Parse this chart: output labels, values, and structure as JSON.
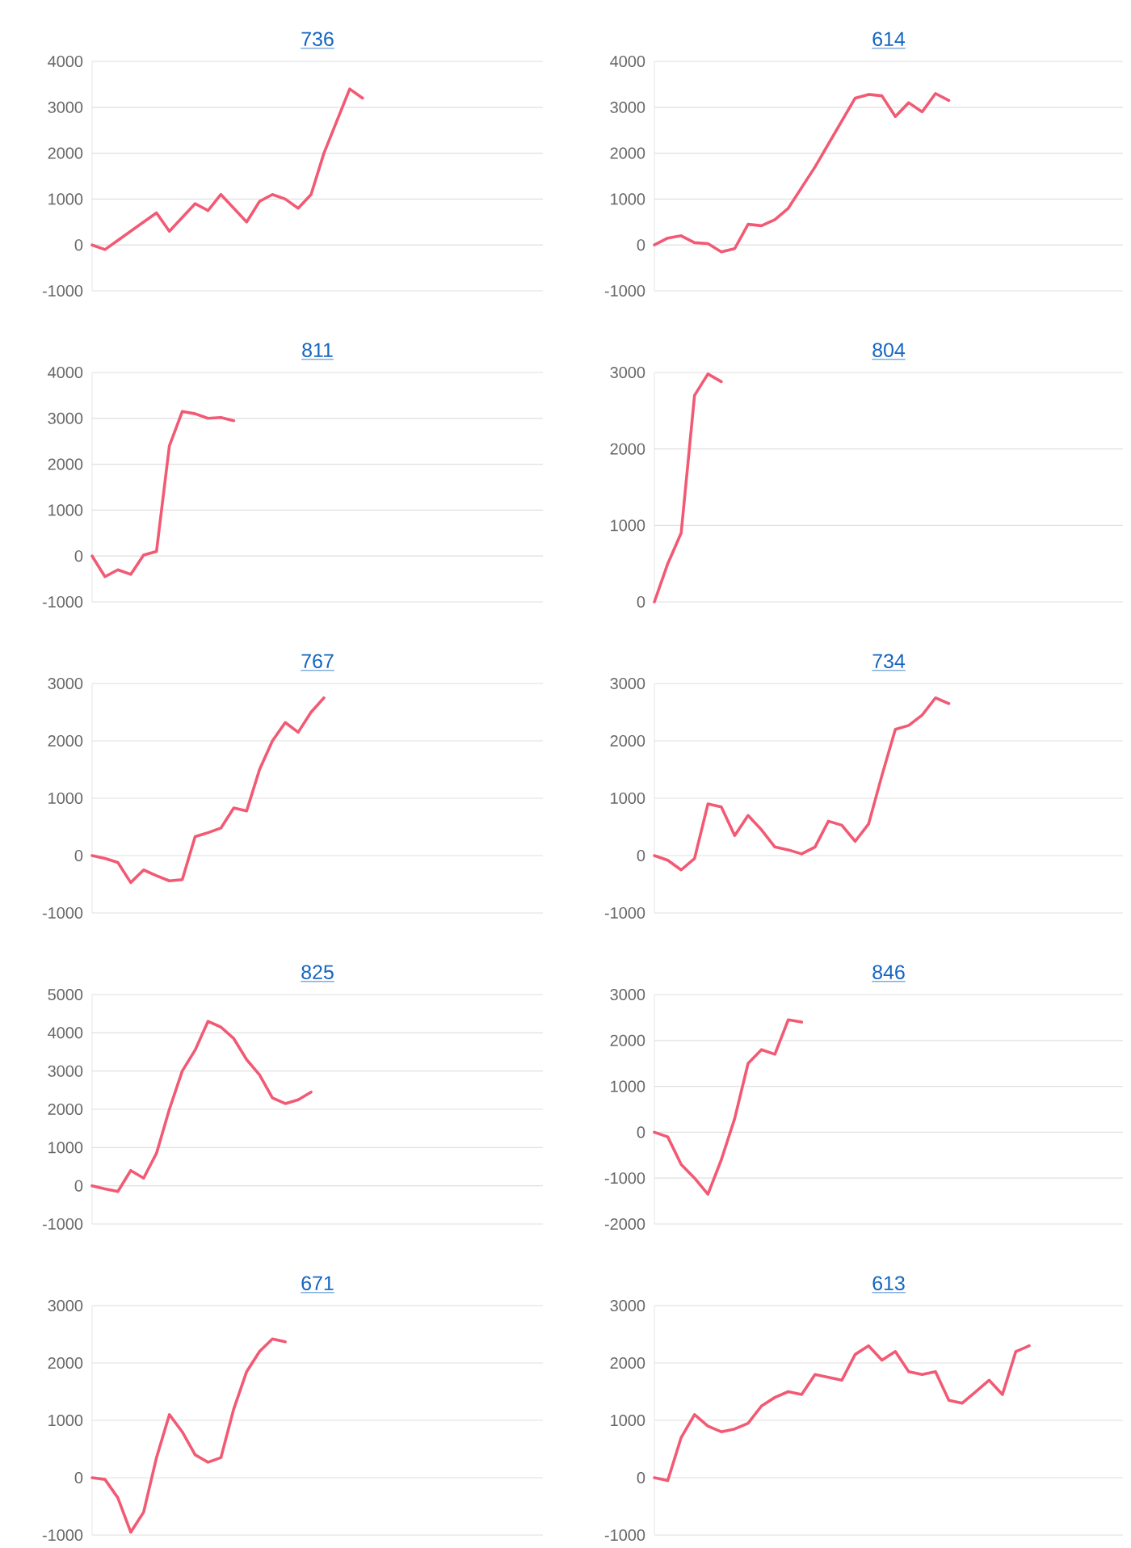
{
  "chart_data": [
    {
      "type": "line",
      "title": "736",
      "categories": [
        null,
        null,
        null,
        null,
        null,
        null,
        null,
        null,
        null,
        null,
        null,
        null,
        null,
        null,
        null,
        null,
        null,
        null,
        null,
        null,
        null,
        null,
        null,
        null,
        null,
        null,
        null,
        null,
        null,
        null,
        null,
        null,
        null,
        null,
        null,
        null
      ],
      "values": [
        0,
        -100,
        100,
        300,
        500,
        700,
        300,
        600,
        900,
        750,
        1100,
        800,
        500,
        950,
        1100,
        1000,
        800,
        1100,
        2000,
        2700,
        3400,
        3200,
        null,
        null,
        null,
        null,
        null,
        null,
        null,
        null,
        null,
        null,
        null,
        null,
        null,
        null
      ],
      "color": "#f25a74",
      "ylim": [
        -1000,
        4000
      ],
      "yticks": [
        -1000,
        0,
        1000,
        2000,
        3000,
        4000
      ],
      "grid": "y"
    },
    {
      "type": "line",
      "title": "614",
      "categories": [
        null,
        null,
        null,
        null,
        null,
        null,
        null,
        null,
        null,
        null,
        null,
        null,
        null,
        null,
        null,
        null,
        null,
        null,
        null,
        null,
        null,
        null,
        null,
        null,
        null,
        null,
        null,
        null,
        null,
        null,
        null,
        null,
        null,
        null,
        null,
        null
      ],
      "values": [
        0,
        150,
        200,
        50,
        30,
        -150,
        -80,
        450,
        420,
        550,
        800,
        1250,
        1700,
        2200,
        2700,
        3200,
        3280,
        3250,
        2800,
        3100,
        2900,
        3300,
        3150,
        null,
        null,
        null,
        null,
        null,
        null,
        null,
        null,
        null,
        null,
        null,
        null,
        null
      ],
      "color": "#f25a74",
      "ylim": [
        -1000,
        4000
      ],
      "yticks": [
        -1000,
        0,
        1000,
        2000,
        3000,
        4000
      ],
      "grid": "y"
    },
    {
      "type": "line",
      "title": "811",
      "categories": [
        null,
        null,
        null,
        null,
        null,
        null,
        null,
        null,
        null,
        null,
        null,
        null,
        null,
        null,
        null,
        null,
        null,
        null,
        null,
        null,
        null,
        null,
        null,
        null,
        null,
        null,
        null,
        null,
        null,
        null,
        null,
        null,
        null,
        null,
        null,
        null
      ],
      "values": [
        0,
        -450,
        -300,
        -400,
        20,
        100,
        2400,
        3150,
        3100,
        3000,
        3020,
        2950,
        null,
        null,
        null,
        null,
        null,
        null,
        null,
        null,
        null,
        null,
        null,
        null,
        null,
        null,
        null,
        null,
        null,
        null,
        null,
        null,
        null,
        null,
        null,
        null
      ],
      "color": "#f25a74",
      "ylim": [
        -1000,
        4000
      ],
      "yticks": [
        -1000,
        0,
        1000,
        2000,
        3000,
        4000
      ],
      "grid": "y"
    },
    {
      "type": "line",
      "title": "804",
      "categories": [
        null,
        null,
        null,
        null,
        null,
        null,
        null,
        null,
        null,
        null,
        null,
        null,
        null,
        null,
        null,
        null,
        null,
        null,
        null,
        null,
        null,
        null,
        null,
        null,
        null,
        null,
        null,
        null,
        null,
        null,
        null,
        null,
        null,
        null,
        null,
        null
      ],
      "values": [
        0,
        500,
        900,
        2700,
        2980,
        2880,
        null,
        null,
        null,
        null,
        null,
        null,
        null,
        null,
        null,
        null,
        null,
        null,
        null,
        null,
        null,
        null,
        null,
        null,
        null,
        null,
        null,
        null,
        null,
        null,
        null,
        null,
        null,
        null,
        null,
        null
      ],
      "color": "#f25a74",
      "ylim": [
        0,
        3000
      ],
      "yticks": [
        0,
        1000,
        2000,
        3000
      ],
      "grid": "y"
    },
    {
      "type": "line",
      "title": "767",
      "categories": [
        null,
        null,
        null,
        null,
        null,
        null,
        null,
        null,
        null,
        null,
        null,
        null,
        null,
        null,
        null,
        null,
        null,
        null,
        null,
        null,
        null,
        null,
        null,
        null,
        null,
        null,
        null,
        null,
        null,
        null,
        null,
        null,
        null,
        null,
        null,
        null
      ],
      "values": [
        0,
        -50,
        -120,
        -470,
        -250,
        -350,
        -440,
        -420,
        330,
        400,
        480,
        830,
        780,
        1500,
        2000,
        2320,
        2150,
        2500,
        2750,
        null,
        null,
        null,
        null,
        null,
        null,
        null,
        null,
        null,
        null,
        null,
        null,
        null,
        null,
        null,
        null,
        null
      ],
      "color": "#f25a74",
      "ylim": [
        -1000,
        3000
      ],
      "yticks": [
        -1000,
        0,
        1000,
        2000,
        3000
      ],
      "grid": "y"
    },
    {
      "type": "line",
      "title": "734",
      "categories": [
        null,
        null,
        null,
        null,
        null,
        null,
        null,
        null,
        null,
        null,
        null,
        null,
        null,
        null,
        null,
        null,
        null,
        null,
        null,
        null,
        null,
        null,
        null,
        null,
        null,
        null,
        null,
        null,
        null,
        null,
        null,
        null,
        null,
        null,
        null,
        null
      ],
      "values": [
        0,
        -80,
        -250,
        -50,
        900,
        850,
        350,
        700,
        450,
        150,
        100,
        30,
        150,
        600,
        530,
        250,
        550,
        1400,
        2200,
        2270,
        2450,
        2750,
        2650,
        null,
        null,
        null,
        null,
        null,
        null,
        null,
        null,
        null,
        null,
        null,
        null,
        null
      ],
      "color": "#f25a74",
      "ylim": [
        -1000,
        3000
      ],
      "yticks": [
        -1000,
        0,
        1000,
        2000,
        3000
      ],
      "grid": "y"
    },
    {
      "type": "line",
      "title": "825",
      "categories": [
        null,
        null,
        null,
        null,
        null,
        null,
        null,
        null,
        null,
        null,
        null,
        null,
        null,
        null,
        null,
        null,
        null,
        null,
        null,
        null,
        null,
        null,
        null,
        null,
        null,
        null,
        null,
        null,
        null,
        null,
        null,
        null,
        null,
        null,
        null,
        null
      ],
      "values": [
        0,
        -80,
        -150,
        400,
        200,
        850,
        2000,
        3000,
        3550,
        4300,
        4150,
        3850,
        3300,
        2900,
        2300,
        2150,
        2250,
        2450,
        null,
        null,
        null,
        null,
        null,
        null,
        null,
        null,
        null,
        null,
        null,
        null,
        null,
        null,
        null,
        null,
        null,
        null
      ],
      "color": "#f25a74",
      "ylim": [
        -1000,
        5000
      ],
      "yticks": [
        -1000,
        0,
        1000,
        2000,
        3000,
        4000,
        5000
      ],
      "grid": "y"
    },
    {
      "type": "line",
      "title": "846",
      "categories": [
        null,
        null,
        null,
        null,
        null,
        null,
        null,
        null,
        null,
        null,
        null,
        null,
        null,
        null,
        null,
        null,
        null,
        null,
        null,
        null,
        null,
        null,
        null,
        null,
        null,
        null,
        null,
        null,
        null,
        null,
        null,
        null,
        null,
        null,
        null,
        null
      ],
      "values": [
        0,
        -100,
        -700,
        -1000,
        -1350,
        -600,
        300,
        1500,
        1800,
        1700,
        2450,
        2400,
        null,
        null,
        null,
        null,
        null,
        null,
        null,
        null,
        null,
        null,
        null,
        null,
        null,
        null,
        null,
        null,
        null,
        null,
        null,
        null,
        null,
        null,
        null,
        null
      ],
      "color": "#f25a74",
      "ylim": [
        -2000,
        3000
      ],
      "yticks": [
        -2000,
        -1000,
        0,
        1000,
        2000,
        3000
      ],
      "grid": "y"
    },
    {
      "type": "line",
      "title": "671",
      "categories": [
        null,
        null,
        null,
        null,
        null,
        null,
        null,
        null,
        null,
        null,
        null,
        null,
        null,
        null,
        null,
        null,
        null,
        null,
        null,
        null,
        null,
        null,
        null,
        null,
        null,
        null,
        null,
        null,
        null,
        null,
        null,
        null,
        null,
        null,
        null,
        null
      ],
      "values": [
        0,
        -30,
        -350,
        -950,
        -600,
        350,
        1100,
        800,
        400,
        270,
        350,
        1200,
        1850,
        2200,
        2420,
        2370,
        null,
        null,
        null,
        null,
        null,
        null,
        null,
        null,
        null,
        null,
        null,
        null,
        null,
        null,
        null,
        null,
        null,
        null,
        null,
        null
      ],
      "color": "#f25a74",
      "ylim": [
        -1000,
        3000
      ],
      "yticks": [
        -1000,
        0,
        1000,
        2000,
        3000
      ],
      "grid": "y"
    },
    {
      "type": "line",
      "title": "613",
      "categories": [
        null,
        null,
        null,
        null,
        null,
        null,
        null,
        null,
        null,
        null,
        null,
        null,
        null,
        null,
        null,
        null,
        null,
        null,
        null,
        null,
        null,
        null,
        null,
        null,
        null,
        null,
        null,
        null,
        null,
        null,
        null,
        null,
        null,
        null,
        null,
        null
      ],
      "values": [
        0,
        -50,
        700,
        1100,
        900,
        800,
        850,
        950,
        1250,
        1400,
        1500,
        1450,
        1800,
        1750,
        1700,
        2150,
        2300,
        2050,
        2200,
        1850,
        1800,
        1850,
        1350,
        1300,
        1500,
        1700,
        1450,
        2200,
        2300,
        null,
        null,
        null,
        null,
        null,
        null,
        null
      ],
      "color": "#f25a74",
      "ylim": [
        -1000,
        3000
      ],
      "yticks": [
        -1000,
        0,
        1000,
        2000,
        3000
      ],
      "grid": "y"
    }
  ]
}
